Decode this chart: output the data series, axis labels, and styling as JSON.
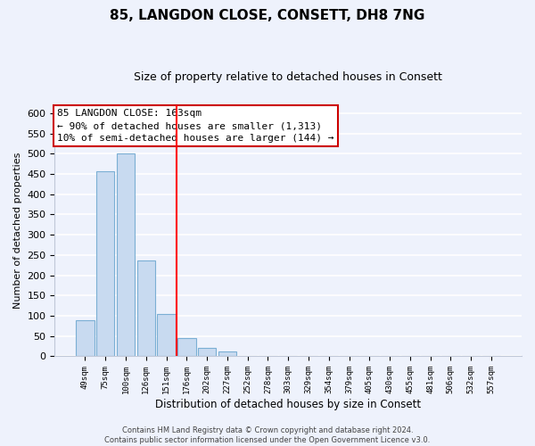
{
  "title": "85, LANGDON CLOSE, CONSETT, DH8 7NG",
  "subtitle": "Size of property relative to detached houses in Consett",
  "xlabel": "Distribution of detached houses by size in Consett",
  "ylabel": "Number of detached properties",
  "bar_labels": [
    "49sqm",
    "75sqm",
    "100sqm",
    "126sqm",
    "151sqm",
    "176sqm",
    "202sqm",
    "227sqm",
    "252sqm",
    "278sqm",
    "303sqm",
    "329sqm",
    "354sqm",
    "379sqm",
    "405sqm",
    "430sqm",
    "455sqm",
    "481sqm",
    "506sqm",
    "532sqm",
    "557sqm"
  ],
  "bar_values": [
    90,
    457,
    500,
    236,
    104,
    45,
    20,
    12,
    2,
    0,
    1,
    0,
    0,
    0,
    0,
    0,
    0,
    0,
    0,
    0,
    1
  ],
  "bar_color": "#c8daf0",
  "bar_edge_color": "#7bafd4",
  "ylim": [
    0,
    620
  ],
  "yticks": [
    0,
    50,
    100,
    150,
    200,
    250,
    300,
    350,
    400,
    450,
    500,
    550,
    600
  ],
  "red_line_x": 4.5,
  "annotation_title": "85 LANGDON CLOSE: 163sqm",
  "annotation_line1": "← 90% of detached houses are smaller (1,313)",
  "annotation_line2": "10% of semi-detached houses are larger (144) →",
  "annotation_box_color": "#ffffff",
  "annotation_box_edge": "#cc0000",
  "footer_line1": "Contains HM Land Registry data © Crown copyright and database right 2024.",
  "footer_line2": "Contains public sector information licensed under the Open Government Licence v3.0.",
  "background_color": "#eef2fc",
  "plot_background": "#eef2fc",
  "grid_color": "#ffffff",
  "title_fontsize": 11,
  "subtitle_fontsize": 9
}
